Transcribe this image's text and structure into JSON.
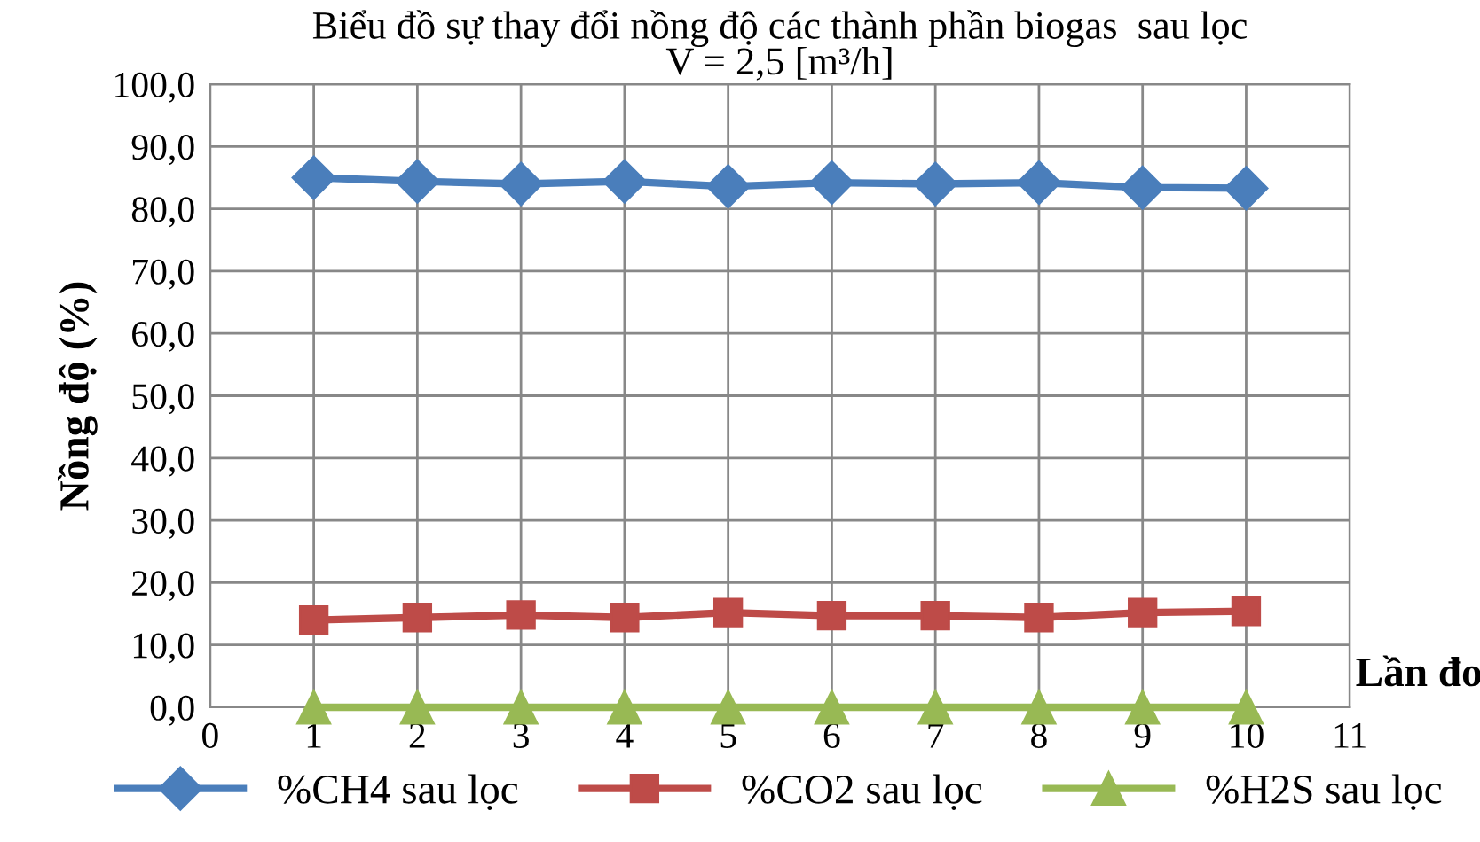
{
  "chart_data": {
    "type": "line",
    "title": "Biểu đồ sự thay đổi nồng độ các thành phần biogas  sau lọc\nV = 2,5 [m³/h]",
    "xlabel": "Lần đo",
    "ylabel": "Nồng độ (%)",
    "x": [
      1,
      2,
      3,
      4,
      5,
      6,
      7,
      8,
      9,
      10
    ],
    "series": [
      {
        "name": "%CH4 sau lọc",
        "color": "#4a7ebb",
        "marker": "diamond",
        "values": [
          85.0,
          84.4,
          84.0,
          84.4,
          83.6,
          84.2,
          84.0,
          84.2,
          83.4,
          83.3
        ]
      },
      {
        "name": "%CO2 sau lọc",
        "color": "#be4b48",
        "marker": "square",
        "values": [
          14.0,
          14.4,
          14.8,
          14.4,
          15.2,
          14.7,
          14.7,
          14.4,
          15.2,
          15.4
        ]
      },
      {
        "name": "%H2S sau lọc",
        "color": "#98b954",
        "marker": "triangle",
        "values": [
          0,
          0,
          0,
          0,
          0,
          0,
          0,
          0,
          0,
          0
        ]
      }
    ],
    "xlim": [
      0,
      11
    ],
    "xticks": [
      0,
      1,
      2,
      3,
      4,
      5,
      6,
      7,
      8,
      9,
      10,
      11
    ],
    "ylim": [
      0,
      100
    ],
    "yticks": [
      {
        "value": 0,
        "label": "0,0"
      },
      {
        "value": 10,
        "label": "10,0"
      },
      {
        "value": 20,
        "label": "20,0"
      },
      {
        "value": 30,
        "label": "30,0"
      },
      {
        "value": 40,
        "label": "40,0"
      },
      {
        "value": 50,
        "label": "50,0"
      },
      {
        "value": 60,
        "label": "60,0"
      },
      {
        "value": 70,
        "label": "70,0"
      },
      {
        "value": 80,
        "label": "80,0"
      },
      {
        "value": 90,
        "label": "90,0"
      },
      {
        "value": 100,
        "label": "100,0"
      }
    ],
    "grid": true,
    "legend": "bottom",
    "line_style": "solid"
  }
}
